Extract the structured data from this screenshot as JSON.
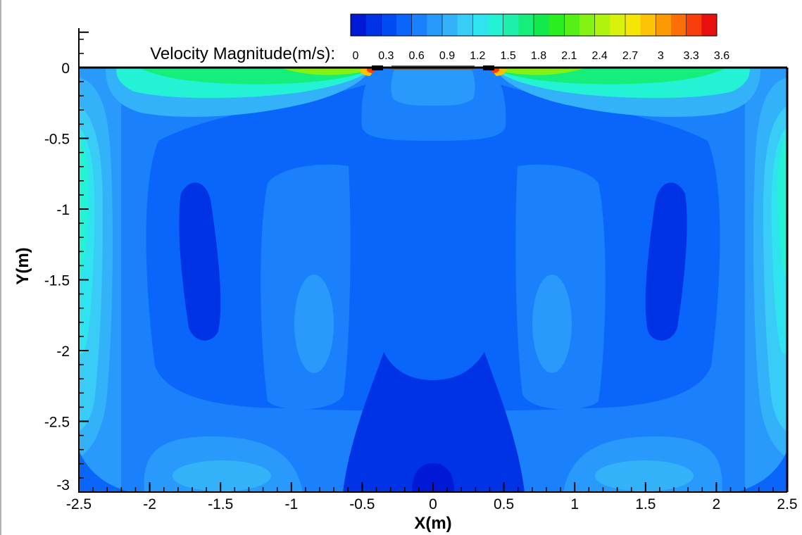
{
  "chart_data": {
    "type": "heatmap",
    "plot_kind": "filled contour",
    "xlabel": "X(m)",
    "ylabel": "Y(m)",
    "xlim": [
      -2.5,
      2.5
    ],
    "ylim": [
      -3,
      0
    ],
    "x_ticks": [
      "-2.5",
      "-2",
      "-1.5",
      "-1",
      "-0.5",
      "0",
      "0.5",
      "1",
      "1.5",
      "2",
      "2.5"
    ],
    "y_ticks": [
      "0",
      "-0.5",
      "-1",
      "-1.5",
      "-2",
      "-2.5",
      "-3"
    ],
    "y_top_tick": "",
    "colorbar": {
      "title": "Velocity Magnitude(m/s):",
      "min": 0,
      "max": 3.6,
      "levels": 24,
      "tick_values": [
        "0",
        "0.3",
        "0.6",
        "0.9",
        "1.2",
        "1.5",
        "1.8",
        "2.1",
        "2.4",
        "2.7",
        "3",
        "3.3",
        "3.6"
      ],
      "colors": [
        "#0019d6",
        "#0033e6",
        "#004cf2",
        "#0a66fa",
        "#1a80fc",
        "#2a99fc",
        "#33b2fa",
        "#38ccf6",
        "#30e4ef",
        "#24f2d4",
        "#1ef0ac",
        "#16ee7c",
        "#12ea4c",
        "#2aee1e",
        "#56f016",
        "#84f212",
        "#b0f40e",
        "#d8f20a",
        "#f4e606",
        "#fcc204",
        "#fc9a04",
        "#fc6e06",
        "#f83e0a",
        "#e8100e"
      ]
    },
    "field_samples": [
      {
        "x": 0,
        "y": -2.9,
        "velocity": 0.1
      },
      {
        "x": 0,
        "y": -2.3,
        "velocity": 0.25
      },
      {
        "x": 0,
        "y": -1.2,
        "velocity": 0.4
      },
      {
        "x": 0,
        "y": -0.3,
        "velocity": 0.65
      },
      {
        "x": -1.65,
        "y": -1.35,
        "velocity": 0.2
      },
      {
        "x": 1.65,
        "y": -1.35,
        "velocity": 0.2
      },
      {
        "x": -0.85,
        "y": -1.7,
        "velocity": 0.8
      },
      {
        "x": 0.85,
        "y": -1.7,
        "velocity": 0.8
      },
      {
        "x": -1.0,
        "y": -1.4,
        "velocity": 0.6
      },
      {
        "x": 1.0,
        "y": -1.4,
        "velocity": 0.6
      },
      {
        "x": -2.35,
        "y": -1.0,
        "velocity": 1.6
      },
      {
        "x": 2.35,
        "y": -1.0,
        "velocity": 1.6
      },
      {
        "x": -2.35,
        "y": -2.2,
        "velocity": 1.2
      },
      {
        "x": 2.35,
        "y": -2.2,
        "velocity": 1.2
      },
      {
        "x": -1.6,
        "y": -2.85,
        "velocity": 1.0
      },
      {
        "x": 1.6,
        "y": -2.85,
        "velocity": 1.0
      },
      {
        "x": -1.8,
        "y": -0.15,
        "velocity": 1.7
      },
      {
        "x": 1.8,
        "y": -0.15,
        "velocity": 1.7
      },
      {
        "x": -0.45,
        "y": -0.02,
        "velocity": 3.6
      },
      {
        "x": 0.45,
        "y": -0.02,
        "velocity": 3.6
      }
    ],
    "inlet_bar": {
      "x_from": -0.42,
      "x_to": 0.42,
      "y": 0
    }
  }
}
